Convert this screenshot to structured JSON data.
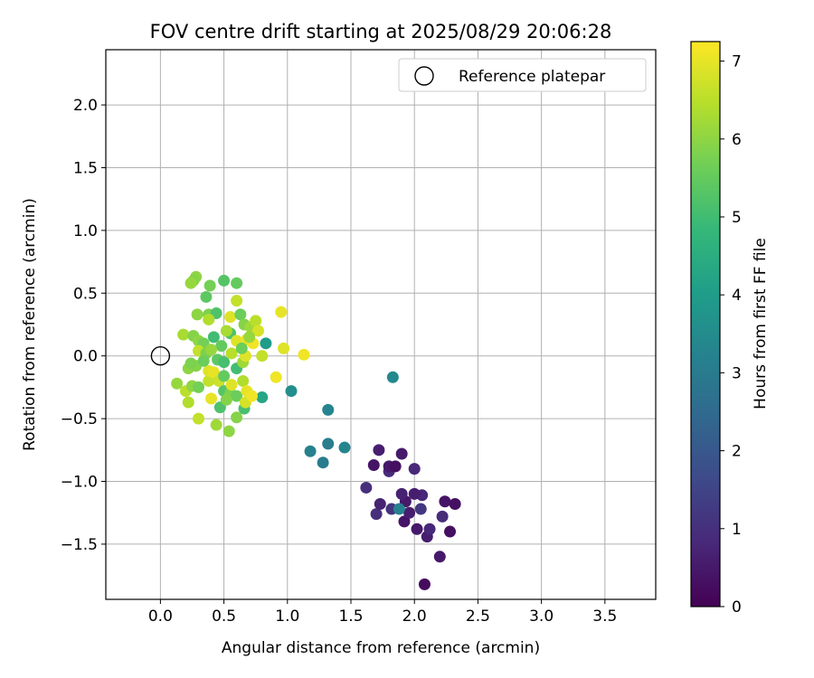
{
  "chart_data": {
    "type": "scatter",
    "title": "FOV centre drift starting at 2025/08/29 20:06:28",
    "xlabel": "Angular distance from reference (arcmin)",
    "ylabel": "Rotation from reference (arcmin)",
    "xlim": [
      -0.43,
      3.9
    ],
    "ylim": [
      -1.94,
      2.44
    ],
    "xticks": [
      0.0,
      0.5,
      1.0,
      1.5,
      2.0,
      2.5,
      3.0,
      3.5
    ],
    "xtick_labels": [
      "0.0",
      "0.5",
      "1.0",
      "1.5",
      "2.0",
      "2.5",
      "3.0",
      "3.5"
    ],
    "yticks": [
      -1.5,
      -1.0,
      -0.5,
      0.0,
      0.5,
      1.0,
      1.5,
      2.0
    ],
    "ytick_labels": [
      "−1.5",
      "−1.0",
      "−0.5",
      "0.0",
      "0.5",
      "1.0",
      "1.5",
      "2.0"
    ],
    "grid": true,
    "legend": {
      "placement": "top-right",
      "entries": [
        {
          "label": "Reference platepar",
          "marker": "open-circle"
        }
      ]
    },
    "reference_point": {
      "x": 0.0,
      "y": 0.0
    },
    "colorbar": {
      "label": "Hours from first FF file",
      "range": [
        0,
        7.25
      ],
      "ticks": [
        0,
        1,
        2,
        3,
        4,
        5,
        6,
        7
      ],
      "tick_labels": [
        "0",
        "1",
        "2",
        "3",
        "4",
        "5",
        "6",
        "7"
      ],
      "colormap": [
        "#440154",
        "#482878",
        "#3e4989",
        "#31688e",
        "#26828e",
        "#1f9e89",
        "#35b779",
        "#6ece58",
        "#b5de2b",
        "#fde725"
      ]
    },
    "series": [
      {
        "points": [
          {
            "x": 2.08,
            "y": -1.82,
            "h": 0.2
          },
          {
            "x": 2.2,
            "y": -1.6,
            "h": 0.5
          },
          {
            "x": 2.1,
            "y": -1.44,
            "h": 0.6
          },
          {
            "x": 2.28,
            "y": -1.4,
            "h": 0.3
          },
          {
            "x": 2.12,
            "y": -1.38,
            "h": 0.8
          },
          {
            "x": 2.02,
            "y": -1.38,
            "h": 0.5
          },
          {
            "x": 1.92,
            "y": -1.32,
            "h": 0.4
          },
          {
            "x": 2.22,
            "y": -1.28,
            "h": 0.9
          },
          {
            "x": 1.7,
            "y": -1.26,
            "h": 1.0
          },
          {
            "x": 1.82,
            "y": -1.22,
            "h": 1.1
          },
          {
            "x": 1.73,
            "y": -1.18,
            "h": 0.7
          },
          {
            "x": 2.05,
            "y": -1.22,
            "h": 1.2
          },
          {
            "x": 1.96,
            "y": -1.25,
            "h": 0.6
          },
          {
            "x": 2.24,
            "y": -1.16,
            "h": 0.4
          },
          {
            "x": 2.32,
            "y": -1.18,
            "h": 0.3
          },
          {
            "x": 1.93,
            "y": -1.16,
            "h": 0.5
          },
          {
            "x": 2.06,
            "y": -1.11,
            "h": 0.8
          },
          {
            "x": 2.0,
            "y": -1.1,
            "h": 0.6
          },
          {
            "x": 1.9,
            "y": -1.1,
            "h": 0.7
          },
          {
            "x": 1.62,
            "y": -1.05,
            "h": 1.0
          },
          {
            "x": 1.8,
            "y": -0.92,
            "h": 0.9
          },
          {
            "x": 1.68,
            "y": -0.87,
            "h": 0.4
          },
          {
            "x": 1.8,
            "y": -0.88,
            "h": 0.5
          },
          {
            "x": 1.85,
            "y": -0.88,
            "h": 0.3
          },
          {
            "x": 2.0,
            "y": -0.9,
            "h": 0.8
          },
          {
            "x": 1.72,
            "y": -0.75,
            "h": 0.6
          },
          {
            "x": 1.9,
            "y": -0.78,
            "h": 0.5
          },
          {
            "x": 1.88,
            "y": -1.22,
            "h": 3.2
          },
          {
            "x": 1.83,
            "y": -0.17,
            "h": 3.4
          },
          {
            "x": 1.45,
            "y": -0.73,
            "h": 3.3
          },
          {
            "x": 1.32,
            "y": -0.7,
            "h": 3.1
          },
          {
            "x": 1.18,
            "y": -0.76,
            "h": 3.2
          },
          {
            "x": 1.28,
            "y": -0.85,
            "h": 3.0
          },
          {
            "x": 1.32,
            "y": -0.43,
            "h": 3.3
          },
          {
            "x": 1.03,
            "y": -0.28,
            "h": 3.6
          },
          {
            "x": 0.83,
            "y": 0.1,
            "h": 4.0
          },
          {
            "x": 0.8,
            "y": -0.33,
            "h": 4.3
          },
          {
            "x": 0.28,
            "y": 0.63,
            "h": 6.0
          },
          {
            "x": 0.26,
            "y": 0.6,
            "h": 5.9
          },
          {
            "x": 0.24,
            "y": 0.58,
            "h": 6.1
          },
          {
            "x": 0.5,
            "y": 0.6,
            "h": 5.3
          },
          {
            "x": 0.6,
            "y": 0.58,
            "h": 5.5
          },
          {
            "x": 0.39,
            "y": 0.56,
            "h": 5.7
          },
          {
            "x": 0.36,
            "y": 0.47,
            "h": 5.4
          },
          {
            "x": 0.6,
            "y": 0.44,
            "h": 6.6
          },
          {
            "x": 0.95,
            "y": 0.35,
            "h": 7.0
          },
          {
            "x": 0.29,
            "y": 0.33,
            "h": 6.0
          },
          {
            "x": 0.38,
            "y": 0.33,
            "h": 5.8
          },
          {
            "x": 0.44,
            "y": 0.34,
            "h": 5.2
          },
          {
            "x": 0.38,
            "y": 0.29,
            "h": 6.4
          },
          {
            "x": 0.55,
            "y": 0.31,
            "h": 6.9
          },
          {
            "x": 0.63,
            "y": 0.33,
            "h": 5.6
          },
          {
            "x": 0.66,
            "y": 0.25,
            "h": 5.9
          },
          {
            "x": 0.71,
            "y": 0.23,
            "h": 6.2
          },
          {
            "x": 0.75,
            "y": 0.28,
            "h": 6.5
          },
          {
            "x": 0.77,
            "y": 0.2,
            "h": 6.8
          },
          {
            "x": 0.18,
            "y": 0.17,
            "h": 6.3
          },
          {
            "x": 0.26,
            "y": 0.16,
            "h": 5.9
          },
          {
            "x": 0.3,
            "y": 0.12,
            "h": 6.0
          },
          {
            "x": 0.34,
            "y": 0.1,
            "h": 5.7
          },
          {
            "x": 0.42,
            "y": 0.15,
            "h": 5.0
          },
          {
            "x": 0.48,
            "y": 0.08,
            "h": 5.5
          },
          {
            "x": 0.55,
            "y": 0.18,
            "h": 5.2
          },
          {
            "x": 0.6,
            "y": 0.12,
            "h": 6.9
          },
          {
            "x": 0.68,
            "y": 0.13,
            "h": 7.0
          },
          {
            "x": 0.73,
            "y": 0.1,
            "h": 7.1
          },
          {
            "x": 0.8,
            "y": 0.0,
            "h": 6.6
          },
          {
            "x": 0.97,
            "y": 0.06,
            "h": 6.9
          },
          {
            "x": 1.13,
            "y": 0.01,
            "h": 7.1
          },
          {
            "x": 0.3,
            "y": 0.04,
            "h": 6.6
          },
          {
            "x": 0.36,
            "y": 0.02,
            "h": 5.8
          },
          {
            "x": 0.4,
            "y": 0.05,
            "h": 6.1
          },
          {
            "x": 0.45,
            "y": -0.03,
            "h": 5.4
          },
          {
            "x": 0.5,
            "y": -0.05,
            "h": 5.1
          },
          {
            "x": 0.56,
            "y": 0.02,
            "h": 6.5
          },
          {
            "x": 0.6,
            "y": -0.1,
            "h": 5.0
          },
          {
            "x": 0.65,
            "y": -0.05,
            "h": 6.2
          },
          {
            "x": 0.67,
            "y": 0.0,
            "h": 6.9
          },
          {
            "x": 0.22,
            "y": -0.1,
            "h": 6.0
          },
          {
            "x": 0.28,
            "y": -0.08,
            "h": 5.9
          },
          {
            "x": 0.24,
            "y": -0.06,
            "h": 5.8
          },
          {
            "x": 0.13,
            "y": -0.22,
            "h": 6.1
          },
          {
            "x": 0.2,
            "y": -0.28,
            "h": 6.5
          },
          {
            "x": 0.22,
            "y": -0.37,
            "h": 6.4
          },
          {
            "x": 0.25,
            "y": -0.24,
            "h": 6.0
          },
          {
            "x": 0.3,
            "y": -0.25,
            "h": 5.7
          },
          {
            "x": 0.38,
            "y": -0.2,
            "h": 6.6
          },
          {
            "x": 0.38,
            "y": -0.12,
            "h": 6.9
          },
          {
            "x": 0.42,
            "y": -0.13,
            "h": 7.0
          },
          {
            "x": 0.46,
            "y": -0.2,
            "h": 6.7
          },
          {
            "x": 0.5,
            "y": -0.16,
            "h": 5.5
          },
          {
            "x": 0.5,
            "y": -0.28,
            "h": 5.3
          },
          {
            "x": 0.55,
            "y": -0.3,
            "h": 5.8
          },
          {
            "x": 0.6,
            "y": -0.32,
            "h": 5.6
          },
          {
            "x": 0.56,
            "y": -0.23,
            "h": 6.9
          },
          {
            "x": 0.4,
            "y": -0.34,
            "h": 7.0
          },
          {
            "x": 0.47,
            "y": -0.41,
            "h": 5.2
          },
          {
            "x": 0.65,
            "y": -0.2,
            "h": 6.4
          },
          {
            "x": 0.66,
            "y": -0.42,
            "h": 5.1
          },
          {
            "x": 0.68,
            "y": -0.28,
            "h": 7.0
          },
          {
            "x": 0.67,
            "y": -0.37,
            "h": 6.8
          },
          {
            "x": 0.72,
            "y": -0.32,
            "h": 7.1
          },
          {
            "x": 0.3,
            "y": -0.5,
            "h": 6.6
          },
          {
            "x": 0.44,
            "y": -0.55,
            "h": 6.2
          },
          {
            "x": 0.54,
            "y": -0.6,
            "h": 6.0
          },
          {
            "x": 0.6,
            "y": -0.49,
            "h": 5.9
          },
          {
            "x": 0.91,
            "y": -0.17,
            "h": 7.1
          },
          {
            "x": 0.52,
            "y": 0.2,
            "h": 6.3
          },
          {
            "x": 0.64,
            "y": 0.06,
            "h": 5.6
          },
          {
            "x": 0.7,
            "y": 0.15,
            "h": 6.1
          },
          {
            "x": 0.34,
            "y": -0.04,
            "h": 5.6
          },
          {
            "x": 0.52,
            "y": -0.35,
            "h": 5.9
          }
        ]
      }
    ]
  }
}
